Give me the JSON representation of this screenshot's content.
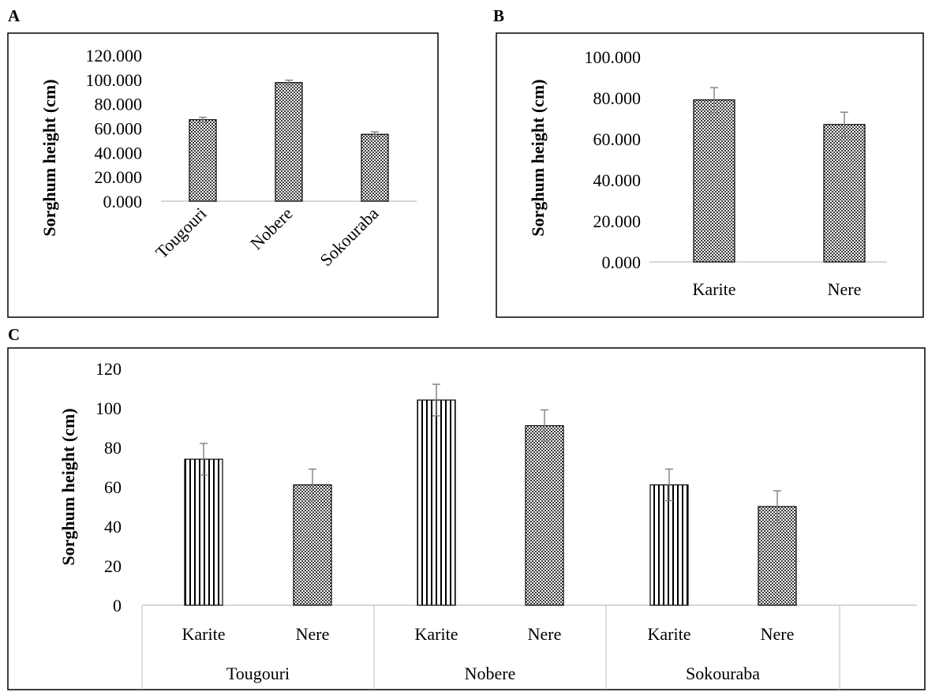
{
  "panels": {
    "a_letter": "A",
    "b_letter": "B",
    "c_letter": "C"
  },
  "chart_data": [
    {
      "panel": "A",
      "type": "bar",
      "ylabel": "Sorghum height (cm)",
      "xlabel": "",
      "ylim": [
        0,
        120
      ],
      "yticks": [
        "0.000",
        "20.000",
        "40.000",
        "60.000",
        "80.000",
        "100.000",
        "120.000"
      ],
      "categories": [
        "Tougouri",
        "Nobere",
        "Sokouraba"
      ],
      "values": [
        67,
        97.5,
        55
      ],
      "errors": [
        2,
        2,
        2
      ],
      "pattern": "checker",
      "grid": false
    },
    {
      "panel": "B",
      "type": "bar",
      "ylabel": "Sorghum height (cm)",
      "xlabel": "",
      "ylim": [
        0,
        100
      ],
      "yticks": [
        "0.000",
        "20.000",
        "40.000",
        "60.000",
        "80.000",
        "100.000"
      ],
      "categories": [
        "Karite",
        "Nere"
      ],
      "values": [
        79,
        67
      ],
      "errors": [
        6,
        6
      ],
      "pattern": "checker",
      "grid": false
    },
    {
      "panel": "C",
      "type": "bar",
      "ylabel": "Sorghum height (cm)",
      "xlabel": "",
      "ylim": [
        0,
        120
      ],
      "yticks": [
        "0",
        "20",
        "40",
        "60",
        "80",
        "100",
        "120"
      ],
      "groups": [
        "Tougouri",
        "Nobere",
        "Sokouraba"
      ],
      "categories": [
        "Karite",
        "Nere",
        "Karite",
        "Nere",
        "Karite",
        "Nere"
      ],
      "values": [
        74,
        61,
        104,
        91,
        61,
        50
      ],
      "errors": [
        8,
        8,
        8,
        8,
        8,
        8
      ],
      "patterns": [
        "stripe",
        "checker",
        "stripe",
        "checker",
        "stripe",
        "checker"
      ],
      "grid": false
    }
  ]
}
